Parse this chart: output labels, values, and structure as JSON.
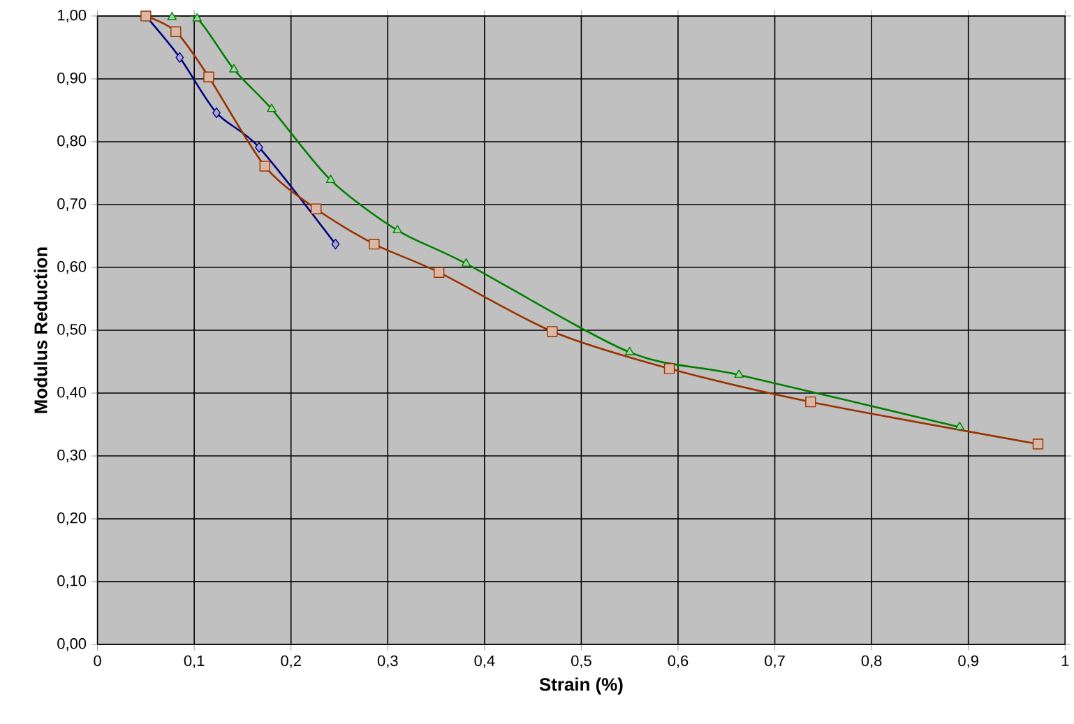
{
  "chart_data": {
    "type": "line",
    "xlabel": "Strain (%)",
    "ylabel": "Modulus Reduction",
    "xlim": [
      0,
      1
    ],
    "ylim": [
      0,
      1
    ],
    "xticks": [
      0,
      {
        "value": 0.1,
        "label": "0,1"
      },
      {
        "value": 0.2,
        "label": "0,2"
      },
      {
        "value": 0.3,
        "label": "0,3"
      },
      {
        "value": 0.4,
        "label": "0,4"
      },
      {
        "value": 0.5,
        "label": "0,5"
      },
      {
        "value": 0.6,
        "label": "0,6"
      },
      {
        "value": 0.7,
        "label": "0,7"
      },
      {
        "value": 0.8,
        "label": "0,8"
      },
      {
        "value": 0.9,
        "label": "0,9"
      },
      1
    ],
    "yticks": [
      {
        "value": 0,
        "label": "0,00"
      },
      {
        "value": 0.1,
        "label": "0,10"
      },
      {
        "value": 0.2,
        "label": "0,20"
      },
      {
        "value": 0.3,
        "label": "0,30"
      },
      {
        "value": 0.4,
        "label": "0,40"
      },
      {
        "value": 0.5,
        "label": "0,50"
      },
      {
        "value": 0.6,
        "label": "0,60"
      },
      {
        "value": 0.7,
        "label": "0,70"
      },
      {
        "value": 0.8,
        "label": "0,80"
      },
      {
        "value": 0.9,
        "label": "0,90"
      },
      {
        "value": 1,
        "label": "1,00"
      }
    ],
    "grid": true,
    "series": [
      {
        "color": "#000080",
        "marker": "diamond",
        "x": [
          0.05,
          0.085,
          0.123,
          0.167,
          0.246
        ],
        "values": [
          1.0,
          0.934,
          0.846,
          0.791,
          0.637
        ]
      },
      {
        "color": "#993300",
        "marker": "square",
        "x": [
          0.05,
          0.081,
          0.115,
          0.173,
          0.226,
          0.286,
          0.353,
          0.47,
          0.591,
          0.737,
          0.972
        ],
        "values": [
          1.0,
          0.975,
          0.903,
          0.761,
          0.693,
          0.637,
          0.592,
          0.498,
          0.439,
          0.386,
          0.319
        ]
      },
      {
        "color": "#008000",
        "marker": "triangle",
        "x": [
          0.077,
          0.103,
          0.141,
          0.18,
          0.241,
          0.31,
          0.381,
          0.55,
          0.663,
          0.891
        ],
        "values": [
          0.998,
          0.996,
          0.915,
          0.852,
          0.739,
          0.659,
          0.606,
          0.465,
          0.429,
          0.346
        ]
      }
    ]
  }
}
